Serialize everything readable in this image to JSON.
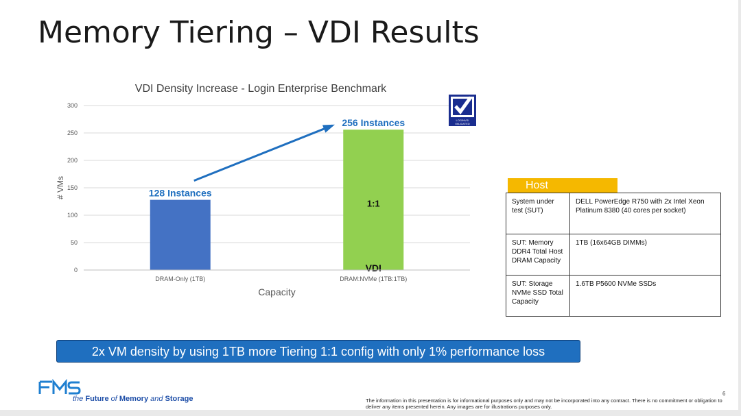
{
  "slide": {
    "title": "Memory Tiering – VDI Results",
    "page_number": "6",
    "banner": "2x VM density by using 1TB more Tiering 1:1 config with only 1% performance loss",
    "footer_disclaimer": "The information in this presentation is for informational purposes only and may not be incorporated into any contract. There is no commitment or obligation to deliver any items presented herein. Any images are for illustrations purposes only.",
    "logo_tagline_part1": "the ",
    "logo_tagline_bold": "Future",
    "logo_tagline_of": " of ",
    "logo_tagline_bold2": "Memory",
    "logo_tagline_and": " and ",
    "logo_tagline_bold3": "Storage",
    "badge_text": "LOGINVSI VALIDATED"
  },
  "chart_data": {
    "type": "bar",
    "title": "VDI Density Increase - Login Enterprise Benchmark",
    "xlabel": "Capacity",
    "ylabel": "# VMs",
    "categories": [
      "DRAM-Only (1TB)",
      "DRAM:NVMe (1TB:1TB)"
    ],
    "values": [
      128,
      256
    ],
    "ylim": [
      0,
      300
    ],
    "yticks": [
      0,
      50,
      100,
      150,
      200,
      250,
      300
    ],
    "grid": true,
    "colors": [
      "#4472c4",
      "#92d050"
    ],
    "data_labels": [
      "128 Instances",
      "256 Instances"
    ],
    "bar_annotations": [
      "",
      "1:1"
    ],
    "bar_bottom_annotations": [
      "",
      "VDI"
    ],
    "arrow": {
      "from": "DRAM-Only (1TB)",
      "to": "DRAM:NVMe (1TB:1TB)",
      "color": "#1f6fbf"
    },
    "label_color": "#1f6fbf"
  },
  "host": {
    "header": "Host",
    "rows": [
      {
        "key": "System under test (SUT)",
        "value": "DELL PowerEdge R750 with 2x Intel Xeon Platinum 8380 (40 cores per socket)"
      },
      {
        "key": "SUT: Memory DDR4 Total Host DRAM Capacity",
        "value": "1TB (16x64GB DIMMs)"
      },
      {
        "key": "SUT: Storage NVMe SSD Total Capacity",
        "value": "1.6TB P5600 NVMe SSDs"
      }
    ]
  }
}
